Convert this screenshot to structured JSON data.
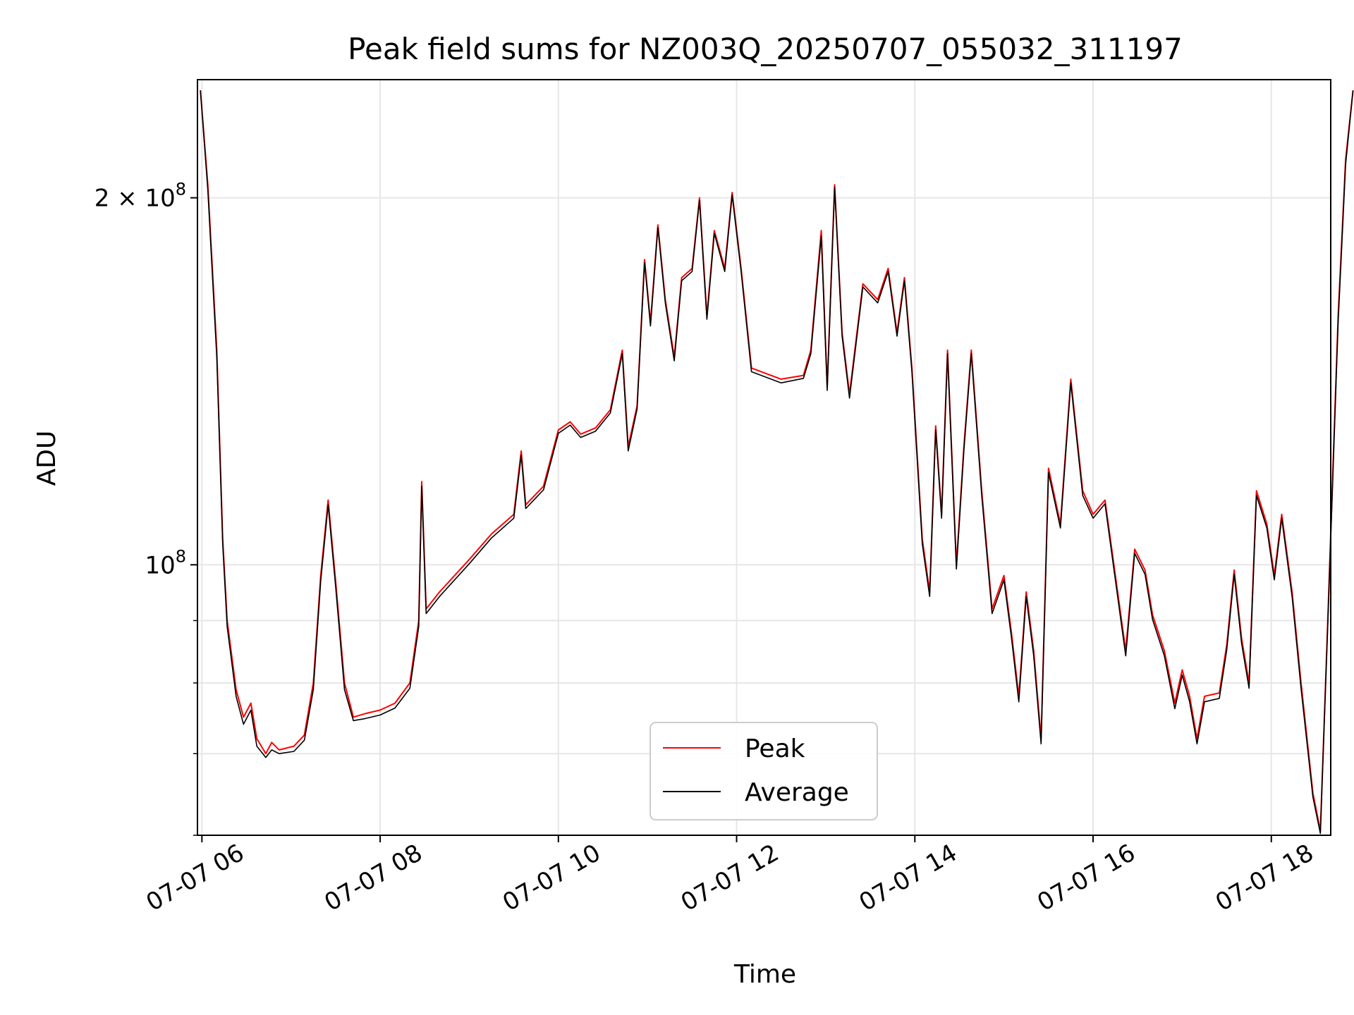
{
  "chart_data": {
    "type": "line",
    "title": "Peak field sums for NZ003Q_20250707_055032_311197",
    "xlabel": "Time",
    "ylabel": "ADU",
    "x_range": [
      "2025-07-07 05:57",
      "2025-07-07 18:40"
    ],
    "ylim": [
      60000000,
      250000000
    ],
    "yscale": "log",
    "grid": true,
    "legend_position": "lower-center",
    "x_ticks": [
      {
        "t": "2025-07-07 06:00",
        "label": "07-07 06"
      },
      {
        "t": "2025-07-07 08:00",
        "label": "07-07 08"
      },
      {
        "t": "2025-07-07 10:00",
        "label": "07-07 10"
      },
      {
        "t": "2025-07-07 12:00",
        "label": "07-07 12"
      },
      {
        "t": "2025-07-07 14:00",
        "label": "07-07 14"
      },
      {
        "t": "2025-07-07 16:00",
        "label": "07-07 16"
      },
      {
        "t": "2025-07-07 18:00",
        "label": "07-07 18"
      }
    ],
    "y_ticks_major": [
      {
        "value": 100000000,
        "label_base": "10",
        "label_exp": "8",
        "label_prefix": ""
      },
      {
        "value": 200000000,
        "label_base": "10",
        "label_exp": "8",
        "label_prefix": "2 × "
      }
    ],
    "y_ticks_minor": [
      60000000,
      70000000,
      80000000,
      90000000
    ],
    "series": [
      {
        "name": "Peak",
        "color": "#ff0000",
        "points": [
          [
            "05:59",
            245000000
          ],
          [
            "06:04",
            205000000
          ],
          [
            "06:10",
            150000000
          ],
          [
            "06:14",
            105000000
          ],
          [
            "06:17",
            90000000
          ],
          [
            "06:23",
            79000000
          ],
          [
            "06:28",
            75000000
          ],
          [
            "06:33",
            77000000
          ],
          [
            "06:37",
            72000000
          ],
          [
            "06:43",
            70000000
          ],
          [
            "06:47",
            71500000
          ],
          [
            "06:52",
            70500000
          ],
          [
            "07:02",
            71000000
          ],
          [
            "07:09",
            72500000
          ],
          [
            "07:15",
            80000000
          ],
          [
            "07:20",
            98000000
          ],
          [
            "07:25",
            113000000
          ],
          [
            "07:30",
            97000000
          ],
          [
            "07:36",
            80000000
          ],
          [
            "07:42",
            75000000
          ],
          [
            "07:50",
            75500000
          ],
          [
            "08:00",
            76000000
          ],
          [
            "08:10",
            77000000
          ],
          [
            "08:20",
            80000000
          ],
          [
            "08:26",
            90000000
          ],
          [
            "08:28",
            117000000
          ],
          [
            "08:31",
            92000000
          ],
          [
            "08:40",
            95000000
          ],
          [
            "09:00",
            101000000
          ],
          [
            "09:15",
            106000000
          ],
          [
            "09:30",
            110000000
          ],
          [
            "09:35",
            124000000
          ],
          [
            "09:38",
            112000000
          ],
          [
            "09:50",
            116000000
          ],
          [
            "10:00",
            129000000
          ],
          [
            "10:08",
            131000000
          ],
          [
            "10:15",
            128000000
          ],
          [
            "10:25",
            129500000
          ],
          [
            "10:35",
            134000000
          ],
          [
            "10:43",
            150000000
          ],
          [
            "10:47",
            125000000
          ],
          [
            "10:53",
            135000000
          ],
          [
            "10:58",
            178000000
          ],
          [
            "11:02",
            158000000
          ],
          [
            "11:07",
            190000000
          ],
          [
            "11:12",
            165000000
          ],
          [
            "11:18",
            148000000
          ],
          [
            "11:23",
            172000000
          ],
          [
            "11:30",
            175000000
          ],
          [
            "11:35",
            200000000
          ],
          [
            "11:40",
            160000000
          ],
          [
            "11:45",
            188000000
          ],
          [
            "11:52",
            175000000
          ],
          [
            "11:57",
            202000000
          ],
          [
            "12:03",
            175000000
          ],
          [
            "12:10",
            145000000
          ],
          [
            "12:30",
            142000000
          ],
          [
            "12:45",
            143000000
          ],
          [
            "12:50",
            150000000
          ],
          [
            "12:57",
            188000000
          ],
          [
            "13:01",
            140000000
          ],
          [
            "13:06",
            205000000
          ],
          [
            "13:11",
            155000000
          ],
          [
            "13:16",
            138000000
          ],
          [
            "13:25",
            170000000
          ],
          [
            "13:35",
            165000000
          ],
          [
            "13:42",
            175000000
          ],
          [
            "13:48",
            155000000
          ],
          [
            "13:53",
            172000000
          ],
          [
            "13:58",
            145000000
          ],
          [
            "14:05",
            105000000
          ],
          [
            "14:10",
            95000000
          ],
          [
            "14:14",
            130000000
          ],
          [
            "14:18",
            110000000
          ],
          [
            "14:22",
            150000000
          ],
          [
            "14:28",
            100000000
          ],
          [
            "14:33",
            125000000
          ],
          [
            "14:38",
            150000000
          ],
          [
            "14:45",
            115000000
          ],
          [
            "14:52",
            92000000
          ],
          [
            "15:00",
            98000000
          ],
          [
            "15:05",
            88000000
          ],
          [
            "15:10",
            78000000
          ],
          [
            "15:15",
            95000000
          ],
          [
            "15:20",
            85000000
          ],
          [
            "15:25",
            72000000
          ],
          [
            "15:30",
            120000000
          ],
          [
            "15:38",
            108000000
          ],
          [
            "15:45",
            142000000
          ],
          [
            "15:53",
            115000000
          ],
          [
            "16:00",
            110000000
          ],
          [
            "16:08",
            113000000
          ],
          [
            "16:15",
            98000000
          ],
          [
            "16:22",
            85000000
          ],
          [
            "16:28",
            103000000
          ],
          [
            "16:35",
            99000000
          ],
          [
            "16:40",
            91000000
          ],
          [
            "16:48",
            85000000
          ],
          [
            "16:55",
            77000000
          ],
          [
            "17:00",
            82000000
          ],
          [
            "17:05",
            78000000
          ],
          [
            "17:10",
            72000000
          ],
          [
            "17:15",
            78000000
          ],
          [
            "17:25",
            78500000
          ],
          [
            "17:30",
            86000000
          ],
          [
            "17:35",
            99000000
          ],
          [
            "17:40",
            87000000
          ],
          [
            "17:45",
            80000000
          ],
          [
            "17:50",
            115000000
          ],
          [
            "17:57",
            108000000
          ],
          [
            "18:02",
            98000000
          ],
          [
            "18:07",
            110000000
          ],
          [
            "18:14",
            95000000
          ],
          [
            "18:20",
            80000000
          ],
          [
            "18:28",
            65000000
          ],
          [
            "18:33",
            60500000
          ],
          [
            "18:38",
            90000000
          ],
          [
            "18:45",
            160000000
          ],
          [
            "18:50",
            215000000
          ],
          [
            "18:55",
            245000000
          ]
        ]
      },
      {
        "name": "Average",
        "color": "#000000",
        "points": [
          [
            "05:59",
            245000000
          ],
          [
            "06:04",
            203000000
          ],
          [
            "06:10",
            148000000
          ],
          [
            "06:14",
            104000000
          ],
          [
            "06:17",
            89000000
          ],
          [
            "06:23",
            78000000
          ],
          [
            "06:28",
            74000000
          ],
          [
            "06:33",
            76000000
          ],
          [
            "06:37",
            71000000
          ],
          [
            "06:43",
            69500000
          ],
          [
            "06:47",
            70500000
          ],
          [
            "06:52",
            70000000
          ],
          [
            "07:02",
            70300000
          ],
          [
            "07:09",
            71800000
          ],
          [
            "07:15",
            79000000
          ],
          [
            "07:20",
            97000000
          ],
          [
            "07:25",
            112000000
          ],
          [
            "07:30",
            96000000
          ],
          [
            "07:36",
            79000000
          ],
          [
            "07:42",
            74500000
          ],
          [
            "07:50",
            74800000
          ],
          [
            "08:00",
            75300000
          ],
          [
            "08:10",
            76300000
          ],
          [
            "08:20",
            79200000
          ],
          [
            "08:26",
            89000000
          ],
          [
            "08:28",
            116000000
          ],
          [
            "08:31",
            91200000
          ],
          [
            "08:40",
            94200000
          ],
          [
            "09:00",
            100200000
          ],
          [
            "09:15",
            105200000
          ],
          [
            "09:30",
            109200000
          ],
          [
            "09:35",
            123000000
          ],
          [
            "09:38",
            111200000
          ],
          [
            "09:50",
            115200000
          ],
          [
            "10:00",
            128200000
          ],
          [
            "10:08",
            130200000
          ],
          [
            "10:15",
            127200000
          ],
          [
            "10:25",
            128700000
          ],
          [
            "10:35",
            133200000
          ],
          [
            "10:43",
            149000000
          ],
          [
            "10:47",
            124000000
          ],
          [
            "10:53",
            134200000
          ],
          [
            "10:58",
            177000000
          ],
          [
            "11:02",
            157000000
          ],
          [
            "11:07",
            189000000
          ],
          [
            "11:12",
            164000000
          ],
          [
            "11:18",
            147000000
          ],
          [
            "11:23",
            171000000
          ],
          [
            "11:30",
            174000000
          ],
          [
            "11:35",
            199000000
          ],
          [
            "11:40",
            159000000
          ],
          [
            "11:45",
            187000000
          ],
          [
            "11:52",
            174000000
          ],
          [
            "11:57",
            201000000
          ],
          [
            "12:03",
            174000000
          ],
          [
            "12:10",
            144000000
          ],
          [
            "12:30",
            141000000
          ],
          [
            "12:45",
            142200000
          ],
          [
            "12:50",
            149000000
          ],
          [
            "12:57",
            186000000
          ],
          [
            "13:01",
            139000000
          ],
          [
            "13:06",
            204000000
          ],
          [
            "13:11",
            154000000
          ],
          [
            "13:16",
            137000000
          ],
          [
            "13:25",
            169000000
          ],
          [
            "13:35",
            164000000
          ],
          [
            "13:42",
            174000000
          ],
          [
            "13:48",
            154000000
          ],
          [
            "13:53",
            171000000
          ],
          [
            "13:58",
            144000000
          ],
          [
            "14:05",
            104000000
          ],
          [
            "14:10",
            94200000
          ],
          [
            "14:14",
            129000000
          ],
          [
            "14:18",
            109200000
          ],
          [
            "14:22",
            149000000
          ],
          [
            "14:28",
            99200000
          ],
          [
            "14:33",
            124000000
          ],
          [
            "14:38",
            149000000
          ],
          [
            "14:45",
            114000000
          ],
          [
            "14:52",
            91200000
          ],
          [
            "15:00",
            97200000
          ],
          [
            "15:05",
            87200000
          ],
          [
            "15:10",
            77200000
          ],
          [
            "15:15",
            94200000
          ],
          [
            "15:20",
            84200000
          ],
          [
            "15:25",
            71300000
          ],
          [
            "15:30",
            119000000
          ],
          [
            "15:38",
            107200000
          ],
          [
            "15:45",
            141000000
          ],
          [
            "15:53",
            114000000
          ],
          [
            "16:00",
            109200000
          ],
          [
            "16:08",
            112200000
          ],
          [
            "16:15",
            97200000
          ],
          [
            "16:22",
            84200000
          ],
          [
            "16:28",
            102200000
          ],
          [
            "16:35",
            98200000
          ],
          [
            "16:40",
            90200000
          ],
          [
            "16:48",
            84200000
          ],
          [
            "16:55",
            76200000
          ],
          [
            "17:00",
            81200000
          ],
          [
            "17:05",
            77200000
          ],
          [
            "17:10",
            71300000
          ],
          [
            "17:15",
            77200000
          ],
          [
            "17:25",
            77700000
          ],
          [
            "17:30",
            85200000
          ],
          [
            "17:35",
            98200000
          ],
          [
            "17:40",
            86200000
          ],
          [
            "17:45",
            79200000
          ],
          [
            "17:50",
            114000000
          ],
          [
            "17:57",
            107200000
          ],
          [
            "18:02",
            97200000
          ],
          [
            "18:07",
            109200000
          ],
          [
            "18:14",
            94200000
          ],
          [
            "18:20",
            79200000
          ],
          [
            "18:28",
            64500000
          ],
          [
            "18:33",
            60200000
          ],
          [
            "18:38",
            89200000
          ],
          [
            "18:45",
            158000000
          ],
          [
            "18:50",
            213000000
          ],
          [
            "18:55",
            245000000
          ]
        ]
      }
    ]
  }
}
